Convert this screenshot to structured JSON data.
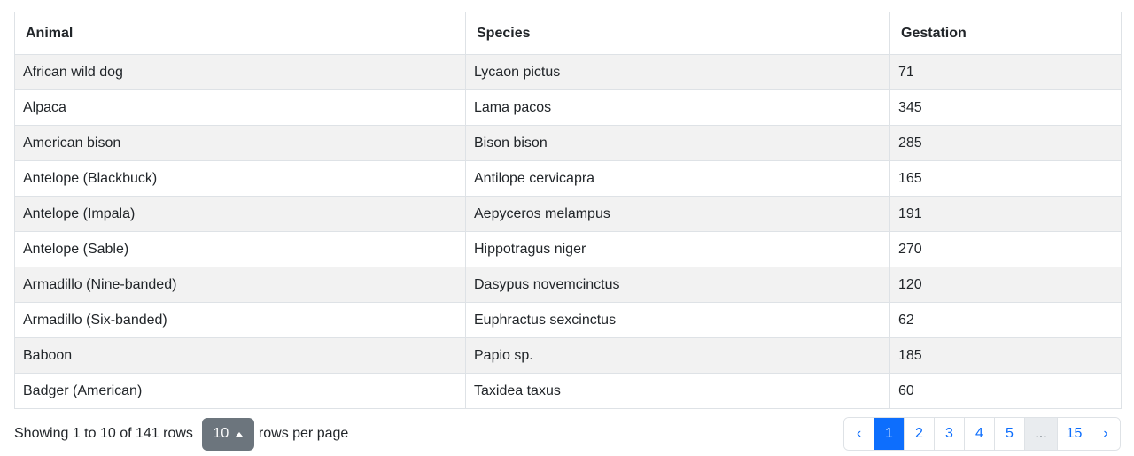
{
  "table": {
    "columns": [
      "Animal",
      "Species",
      "Gestation"
    ],
    "rows": [
      [
        "African wild dog",
        "Lycaon pictus",
        "71"
      ],
      [
        "Alpaca",
        "Lama pacos",
        "345"
      ],
      [
        "American bison",
        "Bison bison",
        "285"
      ],
      [
        "Antelope (Blackbuck)",
        "Antilope cervicapra",
        "165"
      ],
      [
        "Antelope (Impala)",
        "Aepyceros melampus",
        "191"
      ],
      [
        "Antelope (Sable)",
        "Hippotragus niger",
        "270"
      ],
      [
        "Armadillo (Nine-banded)",
        "Dasypus novemcinctus",
        "120"
      ],
      [
        "Armadillo (Six-banded)",
        "Euphractus sexcinctus",
        "62"
      ],
      [
        "Baboon",
        "Papio sp.",
        "185"
      ],
      [
        "Badger (American)",
        "Taxidea taxus",
        "60"
      ]
    ]
  },
  "footer": {
    "showing_text": "Showing 1 to 10 of 141 rows",
    "page_size": "10",
    "page_size_suffix": "rows per page"
  },
  "pagination": {
    "prev": "‹",
    "next": "›",
    "pages": [
      "1",
      "2",
      "3",
      "4",
      "5"
    ],
    "ellipsis": "...",
    "last": "15",
    "active": "1"
  },
  "colors": {
    "accent": "#0d6efd",
    "stripe": "#f2f2f2",
    "button": "#6c757d"
  }
}
